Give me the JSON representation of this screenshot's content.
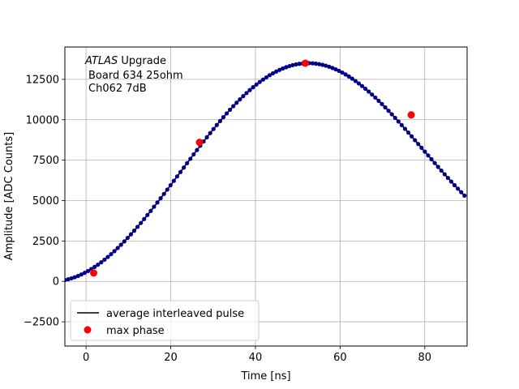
{
  "chart_data": {
    "type": "scatter",
    "title": "",
    "xlabel": "Time [ns]",
    "ylabel": "Amplitude [ADC Counts]",
    "xlim": [
      -5,
      90
    ],
    "ylim": [
      -4000,
      14500
    ],
    "grid": true,
    "xticks": [
      0,
      20,
      40,
      60,
      80
    ],
    "yticks": [
      -2500,
      0,
      2500,
      5000,
      7500,
      10000,
      12500
    ],
    "xtick_labels": [
      "0",
      "20",
      "40",
      "60",
      "80"
    ],
    "ytick_labels": [
      "−2500",
      "0",
      "2500",
      "5000",
      "7500",
      "10000",
      "12500"
    ],
    "annotation": {
      "experiment": "ATLAS",
      "experiment_suffix": " Upgrade",
      "line2": "Board 634 25ohm",
      "line3": "Ch062 7dB"
    },
    "legend": {
      "position": "lower-left",
      "entries": [
        "average interleaved pulse",
        "max phase"
      ]
    },
    "series": [
      {
        "name": "average interleaved pulse",
        "kind": "line+markers",
        "color": "#000000",
        "marker_color": "#00008b",
        "sample_step": 0.78,
        "pulse_model": {
          "peak_amplitude": 13500,
          "peak_time": 52.5,
          "rise_start": -8,
          "fall_time": 85
        }
      },
      {
        "name": "max phase",
        "kind": "markers",
        "color": "#ff0000",
        "x": [
          1.8,
          26.8,
          51.8,
          76.8
        ],
        "y": [
          520,
          8600,
          13500,
          10300
        ]
      }
    ]
  }
}
